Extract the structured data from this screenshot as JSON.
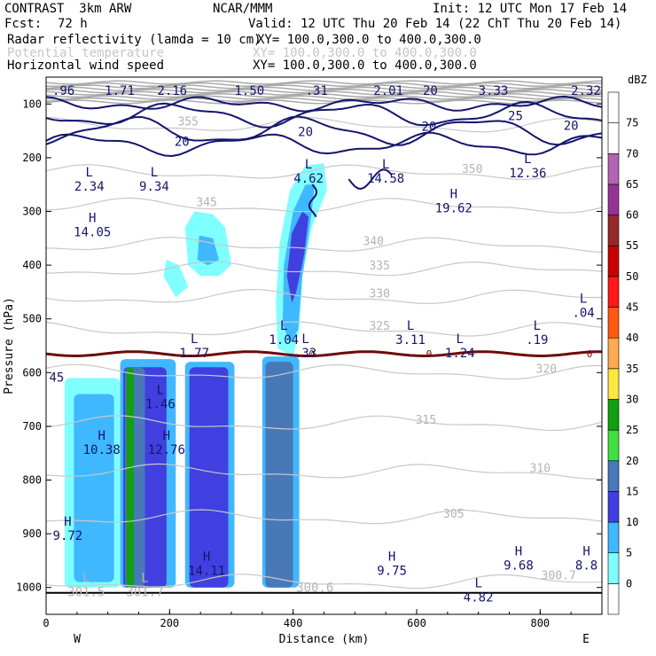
{
  "header": {
    "model": "CONTRAST  3km ARW",
    "center": "NCAR/MMM",
    "init": "Init: 12 UTC Mon 17 Feb 14",
    "fcst_label": "Fcst:",
    "fcst_value": "72 h",
    "valid": "Valid: 12 UTC Thu 20 Feb 14 (22 ChT Thu 20 Feb 14)"
  },
  "fields": [
    {
      "name": "Radar reflectivity (lamda = 10 cm)",
      "xy": "XY= 100.0,300.0 to 400.0,300.0",
      "style": "black"
    },
    {
      "name": "Potential temperature",
      "xy": "XY= 100.0,300.0 to 400.0,300.0",
      "style": "gray"
    },
    {
      "name": "Horizontal wind speed",
      "xy": "XY= 100.0,300.0 to 400.0,300.0",
      "style": "black"
    }
  ],
  "colors": {
    "theta": "#c8c8c8",
    "wind": "#14146e",
    "freezing": "#6e0a0a",
    "dbz": [
      "#ffffff",
      "#80ffff",
      "#40b8ff",
      "#4040e0",
      "#4878b8",
      "#40e040",
      "#10a010",
      "#ffe640",
      "#ffaa50",
      "#ff5a10",
      "#ff1818",
      "#c80000",
      "#962828",
      "#963296",
      "#b464b4",
      "#ffffff"
    ]
  },
  "chart_data": {
    "type": "cross-section contour",
    "xlabel": "Distance (km)",
    "ylabel": "Pressure (hPa)",
    "xlim": [
      0,
      900
    ],
    "ylim": [
      1050,
      50
    ],
    "x_ticks": [
      0,
      200,
      400,
      600,
      800
    ],
    "y_ticks": [
      100,
      200,
      300,
      400,
      500,
      600,
      700,
      800,
      900,
      1000
    ],
    "west_label": "W",
    "east_label": "E",
    "colorbar": {
      "unit": "dBZ",
      "ticks": [
        0,
        5,
        10,
        15,
        20,
        25,
        30,
        35,
        40,
        45,
        50,
        55,
        60,
        65,
        70,
        75
      ]
    },
    "reflectivity_cells": [
      {
        "x0": 30,
        "x1": 120,
        "p_top": 610,
        "p_bot": 1000,
        "dbz": 5
      },
      {
        "x0": 45,
        "x1": 110,
        "p_top": 640,
        "p_bot": 990,
        "dbz": 10
      },
      {
        "x0": 120,
        "x1": 210,
        "p_top": 575,
        "p_bot": 1000,
        "dbz": 10
      },
      {
        "x0": 125,
        "x1": 195,
        "p_top": 590,
        "p_bot": 1000,
        "dbz": 15
      },
      {
        "x0": 128,
        "x1": 160,
        "p_top": 590,
        "p_bot": 1000,
        "dbz": 20
      },
      {
        "x0": 130,
        "x1": 142,
        "p_top": 590,
        "p_bot": 1000,
        "dbz": 30
      },
      {
        "x0": 225,
        "x1": 305,
        "p_top": 580,
        "p_bot": 1000,
        "dbz": 10
      },
      {
        "x0": 232,
        "x1": 295,
        "p_top": 590,
        "p_bot": 1000,
        "dbz": 15
      },
      {
        "x0": 350,
        "x1": 410,
        "p_top": 570,
        "p_bot": 1000,
        "dbz": 10
      },
      {
        "x0": 355,
        "x1": 400,
        "p_top": 580,
        "p_bot": 1000,
        "dbz": 20
      }
    ],
    "theta_contours": [
      {
        "label": "300.7",
        "label_x": 830,
        "label_p": 985
      },
      {
        "label": "305",
        "label_x": 660,
        "label_p": 870
      },
      {
        "label": "310",
        "label_x": 800,
        "label_p": 785
      },
      {
        "label": "315",
        "label_x": 615,
        "label_p": 695
      },
      {
        "label": "320",
        "label_x": 810,
        "label_p": 600
      },
      {
        "label": "325",
        "label_x": 540,
        "label_p": 520
      },
      {
        "label": "330",
        "label_x": 540,
        "label_p": 460
      },
      {
        "label": "335",
        "label_x": 540,
        "label_p": 408
      },
      {
        "label": "340",
        "label_x": 530,
        "label_p": 363
      },
      {
        "label": "345",
        "label_x": 260,
        "label_p": 290
      },
      {
        "label": "350",
        "label_x": 690,
        "label_p": 228
      },
      {
        "label": "355",
        "label_x": 230,
        "label_p": 140
      }
    ],
    "wind_contours": [
      {
        "label": "20",
        "label_x": 220,
        "label_p": 178
      },
      {
        "label": "20",
        "label_x": 420,
        "label_p": 160
      },
      {
        "label": "20",
        "label_x": 620,
        "label_p": 150
      },
      {
        "label": "25",
        "label_x": 760,
        "label_p": 130
      },
      {
        "label": "20",
        "label_x": 850,
        "label_p": 148
      }
    ],
    "top_labels": [
      {
        "text": ".96",
        "x": 10
      },
      {
        "text": "1.71",
        "x": 95
      },
      {
        "text": "2.16",
        "x": 180
      },
      {
        "text": "1.50",
        "x": 305
      },
      {
        "text": ".31",
        "x": 420
      },
      {
        "text": "2.01",
        "x": 530
      },
      {
        "text": "20",
        "x": 610
      },
      {
        "text": "3.33",
        "x": 700
      },
      {
        "text": "2.32",
        "x": 850
      }
    ],
    "freezing_level": {
      "label": "0",
      "pressure_hPa": 565
    },
    "extrema": [
      {
        "type": "L",
        "value": "12.36",
        "x": 780,
        "p": 210,
        "color": "navy"
      },
      {
        "type": "L",
        "value": "2.34",
        "x": 70,
        "p": 235,
        "color": "navy"
      },
      {
        "type": "L",
        "value": "9.34",
        "x": 175,
        "p": 235,
        "color": "navy"
      },
      {
        "type": "L",
        "value": "4.62",
        "x": 425,
        "p": 220,
        "color": "navy"
      },
      {
        "type": "L",
        "value": "14.58",
        "x": 550,
        "p": 220,
        "color": "navy"
      },
      {
        "type": "H",
        "value": "19.62",
        "x": 660,
        "p": 275,
        "color": "navy"
      },
      {
        "type": "H",
        "value": "14.05",
        "x": 75,
        "p": 320,
        "color": "navy"
      },
      {
        "type": "L",
        "value": "1.04",
        "x": 385,
        "p": 520,
        "color": "navy"
      },
      {
        "type": "L",
        "value": "3.11",
        "x": 590,
        "p": 520,
        "color": "navy"
      },
      {
        "type": "L",
        "value": ".19",
        "x": 795,
        "p": 520,
        "color": "navy"
      },
      {
        "type": "L",
        "value": ".04",
        "x": 870,
        "p": 470,
        "color": "navy"
      },
      {
        "type": "L",
        "value": "1.77",
        "x": 240,
        "p": 545,
        "color": "navy"
      },
      {
        "type": "L",
        "value": ".33",
        "x": 420,
        "p": 545,
        "color": "navy"
      },
      {
        "type": "L",
        "value": "1.24",
        "x": 670,
        "p": 545,
        "color": "navy"
      },
      {
        "type": "L",
        "value": "1.46",
        "x": 185,
        "p": 640,
        "color": "navy"
      },
      {
        "type": "H",
        "value": "10.38",
        "x": 90,
        "p": 725,
        "color": "navy"
      },
      {
        "type": "H",
        "value": "12.76",
        "x": 195,
        "p": 725,
        "color": "navy"
      },
      {
        "type": "H",
        "value": "9.72",
        "x": 35,
        "p": 885,
        "color": "navy"
      },
      {
        "type": "H",
        "value": "14.11",
        "x": 260,
        "p": 950,
        "color": "navy"
      },
      {
        "type": "H",
        "value": "9.75",
        "x": 560,
        "p": 950,
        "color": "navy"
      },
      {
        "type": "H",
        "value": "9.68",
        "x": 765,
        "p": 940,
        "color": "navy"
      },
      {
        "type": "H",
        "value": "8.8",
        "x": 875,
        "p": 940,
        "color": "navy"
      },
      {
        "type": "L",
        "value": "4.82",
        "x": 700,
        "p": 1000,
        "color": "navy"
      },
      {
        "type": "L",
        "value": "301.5",
        "x": 65,
        "p": 990,
        "color": "gray"
      },
      {
        "type": "L",
        "value": "301.7",
        "x": 160,
        "p": 990,
        "color": "gray"
      }
    ],
    "edge_labels": [
      {
        "text": "45",
        "x": 5,
        "p": 617,
        "color": "navy"
      },
      {
        "text": "300.6",
        "x": 405,
        "p": 1008,
        "color": "gray"
      }
    ]
  }
}
